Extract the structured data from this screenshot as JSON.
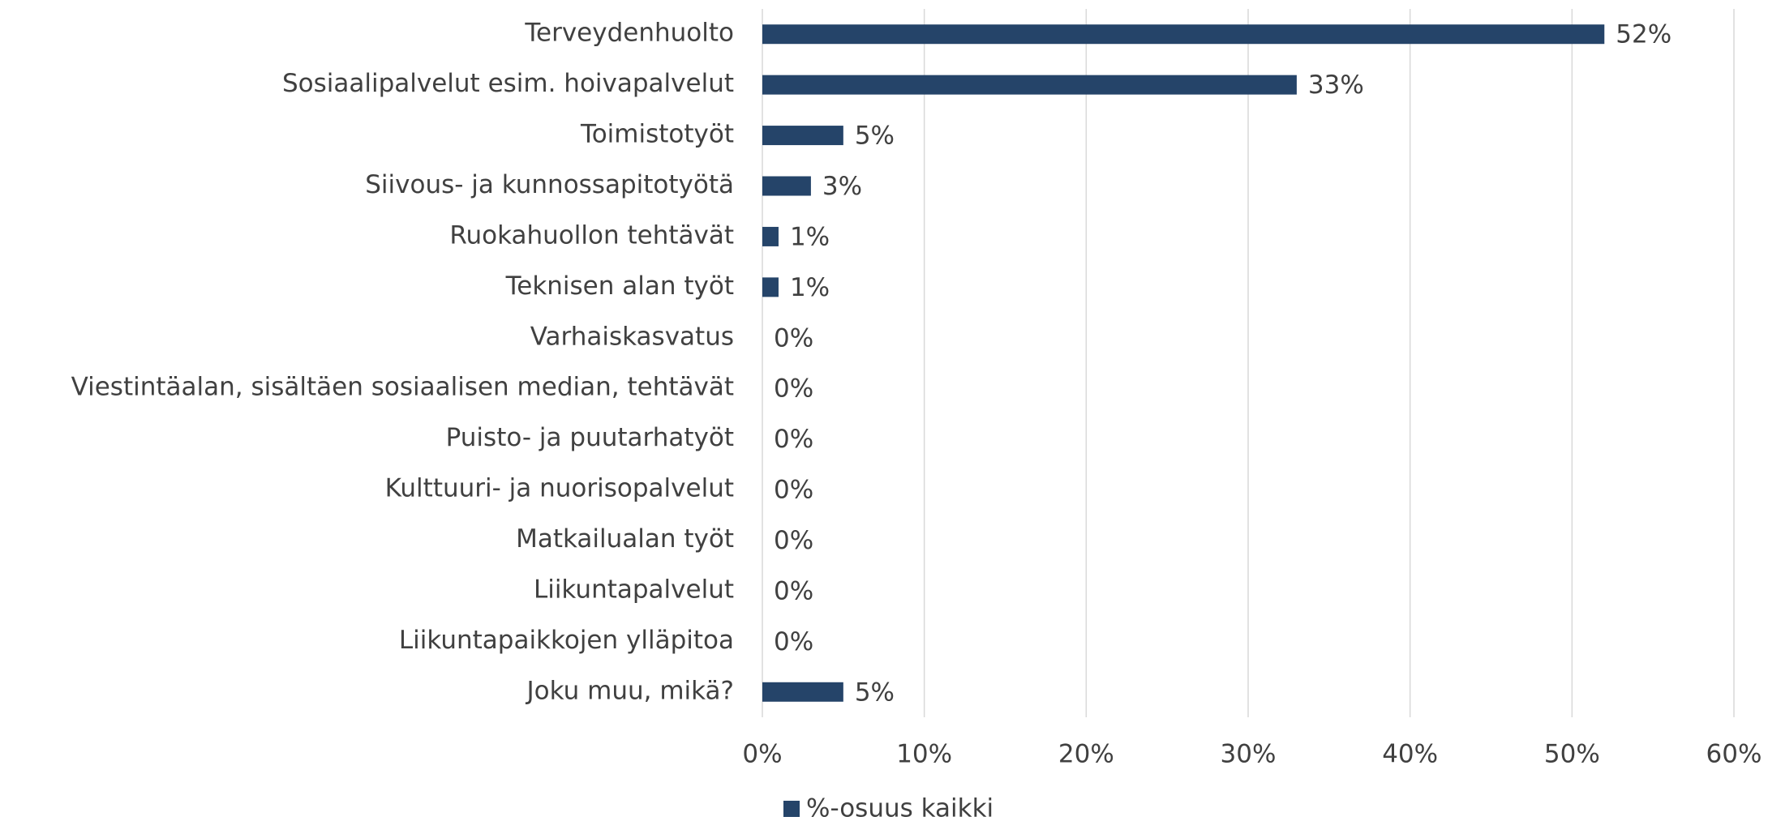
{
  "chart_data": {
    "type": "barh",
    "categories": [
      "Terveydenhuolto",
      "Sosiaalipalvelut esim. hoivapalvelut",
      "Toimistotyöt",
      "Siivous- ja kunnossapitotyötä",
      "Ruokahuollon tehtävät",
      "Teknisen alan työt",
      "Varhaiskasvatus",
      "Viestintäalan, sisältäen sosiaalisen median, tehtävät",
      "Puisto- ja puutarhatyöt",
      "Kulttuuri- ja nuorisopalvelut",
      "Matkailualan työt",
      "Liikuntapalvelut",
      "Liikuntapaikkojen ylläpitoa",
      "Joku muu, mikä?"
    ],
    "series": [
      {
        "name": "%-osuus kaikki",
        "color": "#254469",
        "values": [
          52,
          33,
          5,
          3,
          1,
          1,
          0,
          0,
          0,
          0,
          0,
          0,
          0,
          5
        ],
        "value_labels": [
          "52%",
          "33%",
          "5%",
          "3%",
          "1%",
          "1%",
          "0%",
          "0%",
          "0%",
          "0%",
          "0%",
          "0%",
          "0%",
          "5%"
        ]
      }
    ],
    "xlim": [
      0,
      60
    ],
    "xticks": [
      {
        "value": 0,
        "label": "0%"
      },
      {
        "value": 10,
        "label": "10%"
      },
      {
        "value": 20,
        "label": "20%"
      },
      {
        "value": 30,
        "label": "30%"
      },
      {
        "value": 40,
        "label": "40%"
      },
      {
        "value": 50,
        "label": "50%"
      },
      {
        "value": 60,
        "label": "60%"
      }
    ],
    "grid": true,
    "legend": "bottom"
  }
}
